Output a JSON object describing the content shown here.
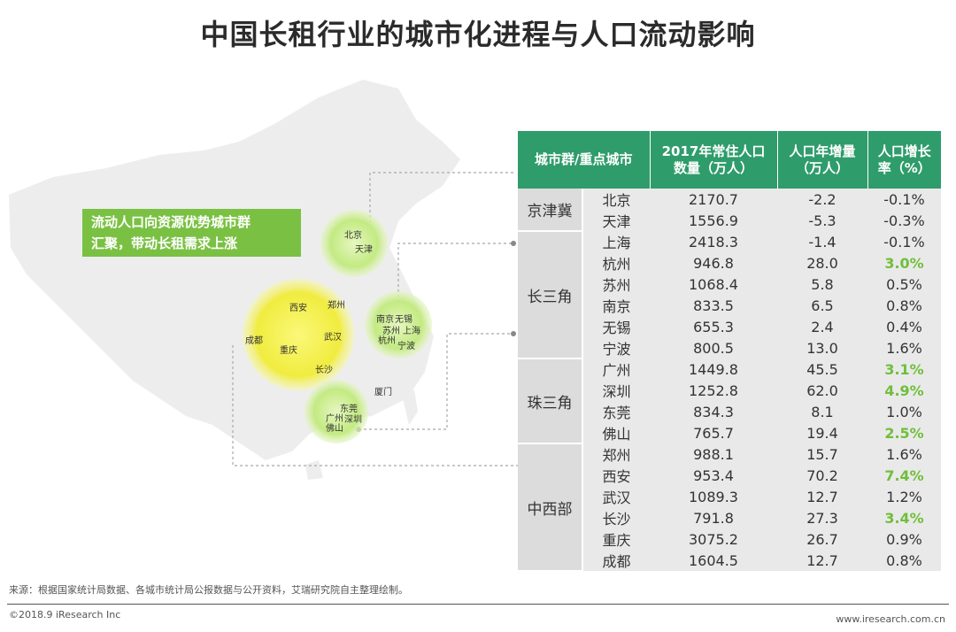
{
  "title": "中国长租行业的城市化进程与人口流动影响",
  "callout": {
    "line1": "流动人口向资源优势城市群",
    "line2": "汇聚，带动长租需求上涨"
  },
  "map_labels": {
    "beijing": "北京",
    "tianjin": "天津",
    "xian": "西安",
    "zhengzhou": "郑州",
    "chengdu": "成都",
    "wuhan": "武汉",
    "chongqing": "重庆",
    "changsha": "长沙",
    "nanjing": "南京",
    "wuxi": "无锡",
    "suzhou": "苏州",
    "shanghai": "上海",
    "hangzhou": "杭州",
    "ningbo": "宁波",
    "xiamen": "厦门",
    "dongguan": "东莞",
    "guangzhou": "广州",
    "shenzhen": "深圳",
    "foshan": "佛山"
  },
  "colors": {
    "header_green": "#2f9c6b",
    "highlight_green": "#6fbf3a",
    "callout_green": "#7ac143",
    "circle_yellow": "#f3ef4f",
    "circle_lightgreen": "#c9eb8c"
  },
  "chart_data": {
    "type": "table",
    "columns": [
      "城市群/重点城市",
      "",
      "2017年常住人口数量（万人）",
      "人口年增量（万人）",
      "人口增长率（%）"
    ],
    "header": {
      "col1": "城市群/重点城市",
      "col2_l1": "2017年常住人口",
      "col2_l2": "数量（万人）",
      "col3_l1": "人口年增量",
      "col3_l2": "（万人）",
      "col4_l1": "人口增长",
      "col4_l2": "率（%）"
    },
    "groups": [
      {
        "name": "京津冀",
        "rows": [
          {
            "city": "北京",
            "population": "2170.7",
            "increase": "-2.2",
            "rate": "-0.1%",
            "highlight": false
          },
          {
            "city": "天津",
            "population": "1556.9",
            "increase": "-5.3",
            "rate": "-0.3%",
            "highlight": false
          }
        ]
      },
      {
        "name": "长三角",
        "rows": [
          {
            "city": "上海",
            "population": "2418.3",
            "increase": "-1.4",
            "rate": "-0.1%",
            "highlight": false
          },
          {
            "city": "杭州",
            "population": "946.8",
            "increase": "28.0",
            "rate": "3.0%",
            "highlight": true
          },
          {
            "city": "苏州",
            "population": "1068.4",
            "increase": "5.8",
            "rate": "0.5%",
            "highlight": false
          },
          {
            "city": "南京",
            "population": "833.5",
            "increase": "6.5",
            "rate": "0.8%",
            "highlight": false
          },
          {
            "city": "无锡",
            "population": "655.3",
            "increase": "2.4",
            "rate": "0.4%",
            "highlight": false
          },
          {
            "city": "宁波",
            "population": "800.5",
            "increase": "13.0",
            "rate": "1.6%",
            "highlight": false
          }
        ]
      },
      {
        "name": "珠三角",
        "rows": [
          {
            "city": "广州",
            "population": "1449.8",
            "increase": "45.5",
            "rate": "3.1%",
            "highlight": true
          },
          {
            "city": "深圳",
            "population": "1252.8",
            "increase": "62.0",
            "rate": "4.9%",
            "highlight": true
          },
          {
            "city": "东莞",
            "population": "834.3",
            "increase": "8.1",
            "rate": "1.0%",
            "highlight": false
          },
          {
            "city": "佛山",
            "population": "765.7",
            "increase": "19.4",
            "rate": "2.5%",
            "highlight": true
          }
        ]
      },
      {
        "name": "中西部",
        "rows": [
          {
            "city": "郑州",
            "population": "988.1",
            "increase": "15.7",
            "rate": "1.6%",
            "highlight": false
          },
          {
            "city": "西安",
            "population": "953.4",
            "increase": "70.2",
            "rate": "7.4%",
            "highlight": true
          },
          {
            "city": "武汉",
            "population": "1089.3",
            "increase": "12.7",
            "rate": "1.2%",
            "highlight": false
          },
          {
            "city": "长沙",
            "population": "791.8",
            "increase": "27.3",
            "rate": "3.4%",
            "highlight": true
          },
          {
            "city": "重庆",
            "population": "3075.2",
            "increase": "26.7",
            "rate": "0.9%",
            "highlight": false
          },
          {
            "city": "成都",
            "population": "1604.5",
            "increase": "12.7",
            "rate": "0.8%",
            "highlight": false
          }
        ]
      }
    ]
  },
  "footer": {
    "source": "来源：根据国家统计局数据、各城市统计局公报数据与公开资料，艾瑞研究院自主整理绘制。",
    "copyright": "©2018.9 iResearch Inc",
    "website": "www.iresearch.com.cn"
  }
}
